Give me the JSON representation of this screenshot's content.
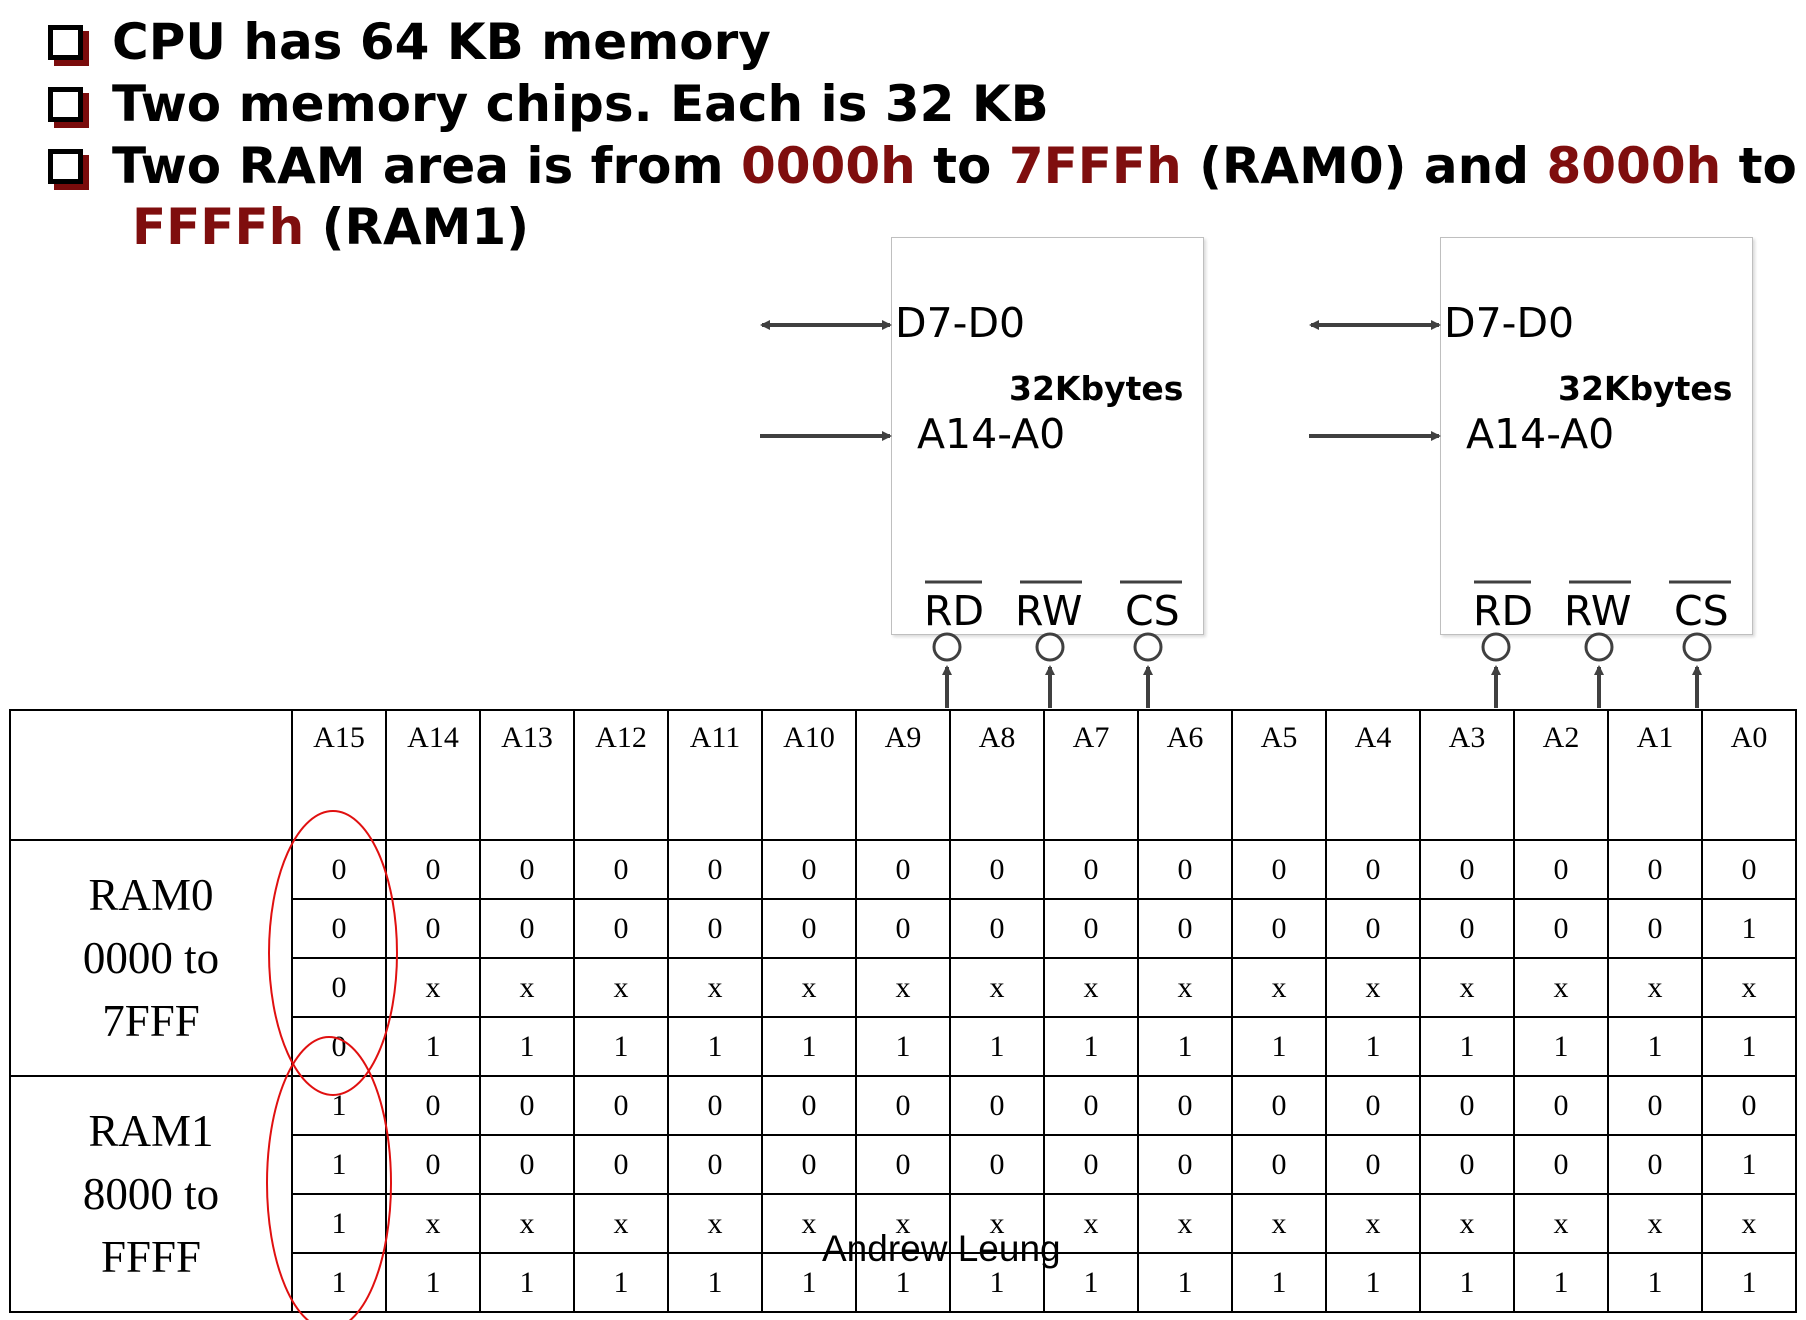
{
  "bullets": [
    {
      "parts": [
        {
          "text": "CPU has 64 KB memory",
          "highlight": false
        }
      ]
    },
    {
      "parts": [
        {
          "text": "Two memory chips. Each is 32 KB",
          "highlight": false
        }
      ]
    },
    {
      "parts": [
        {
          "text": "Two RAM area is from ",
          "highlight": false
        },
        {
          "text": "0000h",
          "highlight": true
        },
        {
          "text": " to ",
          "highlight": false
        },
        {
          "text": "7FFFh",
          "highlight": true
        },
        {
          "text": " (RAM0) and ",
          "highlight": false
        },
        {
          "text": "8000h",
          "highlight": true
        },
        {
          "text": " to",
          "highlight": false
        }
      ]
    },
    {
      "parts": [
        {
          "text": "FFFFh",
          "highlight": true
        },
        {
          "text": " (RAM1)",
          "highlight": false
        }
      ]
    }
  ],
  "chips": [
    {
      "data_pins": "D7-D0",
      "addr_pins": "A14-A0",
      "size": "32Kbytes",
      "ctrl": [
        "RD",
        "RW",
        "CS"
      ]
    },
    {
      "data_pins": "D7-D0",
      "addr_pins": "A14-A0",
      "size": "32Kbytes",
      "ctrl": [
        "RD",
        "RW",
        "CS"
      ]
    }
  ],
  "table": {
    "headers": [
      "A15",
      "A14",
      "A13",
      "A12",
      "A11",
      "A10",
      "A9",
      "A8",
      "A7",
      "A6",
      "A5",
      "A4",
      "A3",
      "A2",
      "A1",
      "A0"
    ],
    "groups": [
      {
        "label": [
          "RAM0",
          "0000 to",
          "7FFF"
        ],
        "rows": [
          [
            "0",
            "0",
            "0",
            "0",
            "0",
            "0",
            "0",
            "0",
            "0",
            "0",
            "0",
            "0",
            "0",
            "0",
            "0",
            "0"
          ],
          [
            "0",
            "0",
            "0",
            "0",
            "0",
            "0",
            "0",
            "0",
            "0",
            "0",
            "0",
            "0",
            "0",
            "0",
            "0",
            "1"
          ],
          [
            "0",
            "x",
            "x",
            "x",
            "x",
            "x",
            "x",
            "x",
            "x",
            "x",
            "x",
            "x",
            "x",
            "x",
            "x",
            "x"
          ],
          [
            "0",
            "1",
            "1",
            "1",
            "1",
            "1",
            "1",
            "1",
            "1",
            "1",
            "1",
            "1",
            "1",
            "1",
            "1",
            "1"
          ]
        ]
      },
      {
        "label": [
          "RAM1",
          "8000 to",
          "FFFF"
        ],
        "rows": [
          [
            "1",
            "0",
            "0",
            "0",
            "0",
            "0",
            "0",
            "0",
            "0",
            "0",
            "0",
            "0",
            "0",
            "0",
            "0",
            "0"
          ],
          [
            "1",
            "0",
            "0",
            "0",
            "0",
            "0",
            "0",
            "0",
            "0",
            "0",
            "0",
            "0",
            "0",
            "0",
            "0",
            "1"
          ],
          [
            "1",
            "x",
            "x",
            "x",
            "x",
            "x",
            "x",
            "x",
            "x",
            "x",
            "x",
            "x",
            "x",
            "x",
            "x",
            "x"
          ],
          [
            "1",
            "1",
            "1",
            "1",
            "1",
            "1",
            "1",
            "1",
            "1",
            "1",
            "1",
            "1",
            "1",
            "1",
            "1",
            "1"
          ]
        ]
      }
    ]
  },
  "watermark": "Andrew Leung",
  "colors": {
    "highlight": "#7f0e0e",
    "circle": "#e01010",
    "arrow": "#404040"
  }
}
